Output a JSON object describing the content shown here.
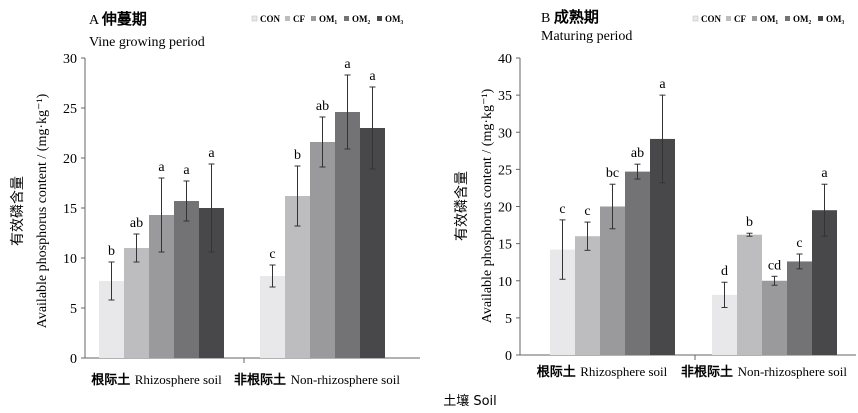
{
  "figure": {
    "xlabel": "土壤  Soil"
  },
  "chart_data": [
    {
      "type": "bar",
      "panel": "A",
      "title_cn": "伸蔓期",
      "title_en": "Vine growing period",
      "ylabel_cn": "有效磷含量",
      "ylabel_en": "Available phosphorus content / (mg·kg⁻¹)",
      "ylim": [
        0,
        30
      ],
      "yticks": [
        0,
        5,
        10,
        15,
        20,
        25,
        30
      ],
      "categories": [
        {
          "cn": "根际土",
          "en": "Rhizosphere soil"
        },
        {
          "cn": "非根际土",
          "en": "Non-rhizosphere soil"
        }
      ],
      "series": [
        {
          "name": "CON",
          "values": [
            7.7,
            8.2
          ],
          "errors": [
            1.9,
            1.1
          ],
          "letters": [
            "b",
            "c"
          ]
        },
        {
          "name": "CF",
          "values": [
            11.0,
            16.2
          ],
          "errors": [
            1.4,
            3.0
          ],
          "letters": [
            "ab",
            "b"
          ]
        },
        {
          "name": "OM₁",
          "values": [
            14.3,
            21.6
          ],
          "errors": [
            3.7,
            2.5
          ],
          "letters": [
            "a",
            "ab"
          ]
        },
        {
          "name": "OM₂",
          "values": [
            15.7,
            24.6
          ],
          "errors": [
            2.0,
            3.7
          ],
          "letters": [
            "a",
            "a"
          ]
        },
        {
          "name": "OM₃",
          "values": [
            15.0,
            23.0
          ],
          "errors": [
            4.4,
            4.1
          ],
          "letters": [
            "a",
            "a"
          ]
        }
      ]
    },
    {
      "type": "bar",
      "panel": "B",
      "title_cn": "成熟期",
      "title_en": "Maturing period",
      "ylabel_cn": "有效磷含量",
      "ylabel_en": "Available phosphorus content / (mg·kg⁻¹)",
      "ylim": [
        0,
        40
      ],
      "yticks": [
        0,
        5,
        10,
        15,
        20,
        25,
        30,
        35,
        40
      ],
      "categories": [
        {
          "cn": "根际土",
          "en": "Rhizosphere soil"
        },
        {
          "cn": "非根际土",
          "en": "Non-rhizosphere soil"
        }
      ],
      "series": [
        {
          "name": "CON",
          "values": [
            14.2,
            8.1
          ],
          "errors": [
            4.0,
            1.7
          ],
          "letters": [
            "c",
            "d"
          ]
        },
        {
          "name": "CF",
          "values": [
            16.0,
            16.2
          ],
          "errors": [
            1.9,
            0.2
          ],
          "letters": [
            "c",
            "b"
          ]
        },
        {
          "name": "OM₁",
          "values": [
            20.0,
            10.0
          ],
          "errors": [
            3.0,
            0.6
          ],
          "letters": [
            "bc",
            "cd"
          ]
        },
        {
          "name": "OM₂",
          "values": [
            24.7,
            12.6
          ],
          "errors": [
            1.0,
            1.0
          ],
          "letters": [
            "ab",
            "c"
          ]
        },
        {
          "name": "OM₃",
          "values": [
            29.1,
            19.5
          ],
          "errors": [
            5.9,
            3.5
          ],
          "letters": [
            "a",
            "a"
          ]
        }
      ]
    }
  ],
  "colors": {
    "series": [
      "#e8e8ea",
      "#bdbdbf",
      "#9a9a9c",
      "#737375",
      "#48484a"
    ],
    "error_bar": "#333333",
    "axis": "#666666"
  }
}
